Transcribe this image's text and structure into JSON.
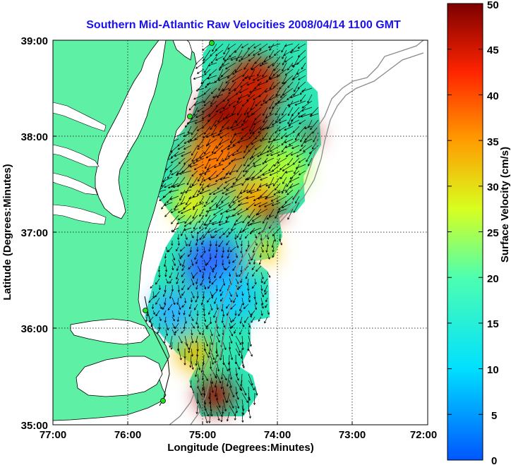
{
  "title": "Southern Mid-Atlantic Raw Velocities 2008/04/14 1100 GMT",
  "x_axis": {
    "label": "Longitude (Degrees:Minutes)",
    "ticks": [
      "77:00",
      "76:00",
      "75:00",
      "74:00",
      "73:00",
      "72:00"
    ]
  },
  "y_axis": {
    "label": "Latitude (Degrees:Minutes)",
    "ticks": [
      "39:00",
      "38:00",
      "37:00",
      "36:00",
      "35:00"
    ]
  },
  "colorbar": {
    "label": "Surface Velocity (cm/s)",
    "ticks": [
      "50",
      "45",
      "40",
      "35",
      "30",
      "25",
      "20",
      "15",
      "10",
      "5",
      "0"
    ],
    "min": 0,
    "max": 50
  },
  "chart_data": {
    "type": "heatmap",
    "title": "Southern Mid-Atlantic Raw Velocities 2008/04/14 1100 GMT",
    "xlabel": "Longitude (Degrees:Minutes)",
    "ylabel": "Latitude (Degrees:Minutes)",
    "xlim": [
      -77,
      -72
    ],
    "ylim": [
      35,
      39
    ],
    "grid": true,
    "colorbar_range": [
      0,
      50
    ],
    "colorbar_label": "Surface Velocity (cm/s)",
    "velocity_regions": [
      {
        "lon": -74.7,
        "lat": 38.2,
        "speed": 48
      },
      {
        "lon": -74.3,
        "lat": 38.4,
        "speed": 40
      },
      {
        "lon": -74.9,
        "lat": 37.8,
        "speed": 35
      },
      {
        "lon": -74.0,
        "lat": 37.8,
        "speed": 20
      },
      {
        "lon": -74.5,
        "lat": 37.4,
        "speed": 30
      },
      {
        "lon": -74.1,
        "lat": 37.25,
        "speed": 42
      },
      {
        "lon": -74.7,
        "lat": 36.7,
        "speed": 5
      },
      {
        "lon": -74.3,
        "lat": 36.3,
        "speed": 12
      },
      {
        "lon": -75.0,
        "lat": 36.0,
        "speed": 10
      },
      {
        "lon": -74.8,
        "lat": 35.6,
        "speed": 22
      },
      {
        "lon": -74.9,
        "lat": 35.25,
        "speed": 48
      },
      {
        "lon": -73.55,
        "lat": 38.0,
        "speed": 46
      }
    ],
    "stations": [
      {
        "lon": -74.9,
        "lat": 38.98
      },
      {
        "lon": -75.1,
        "lat": 38.2
      },
      {
        "lon": -75.75,
        "lat": 36.18
      },
      {
        "lon": -75.5,
        "lat": 35.25
      }
    ]
  },
  "colors": {
    "land": "#5ef0a4",
    "title": "#1a12ee",
    "station": "#22dd22",
    "isobath": "#8a8a8a"
  }
}
